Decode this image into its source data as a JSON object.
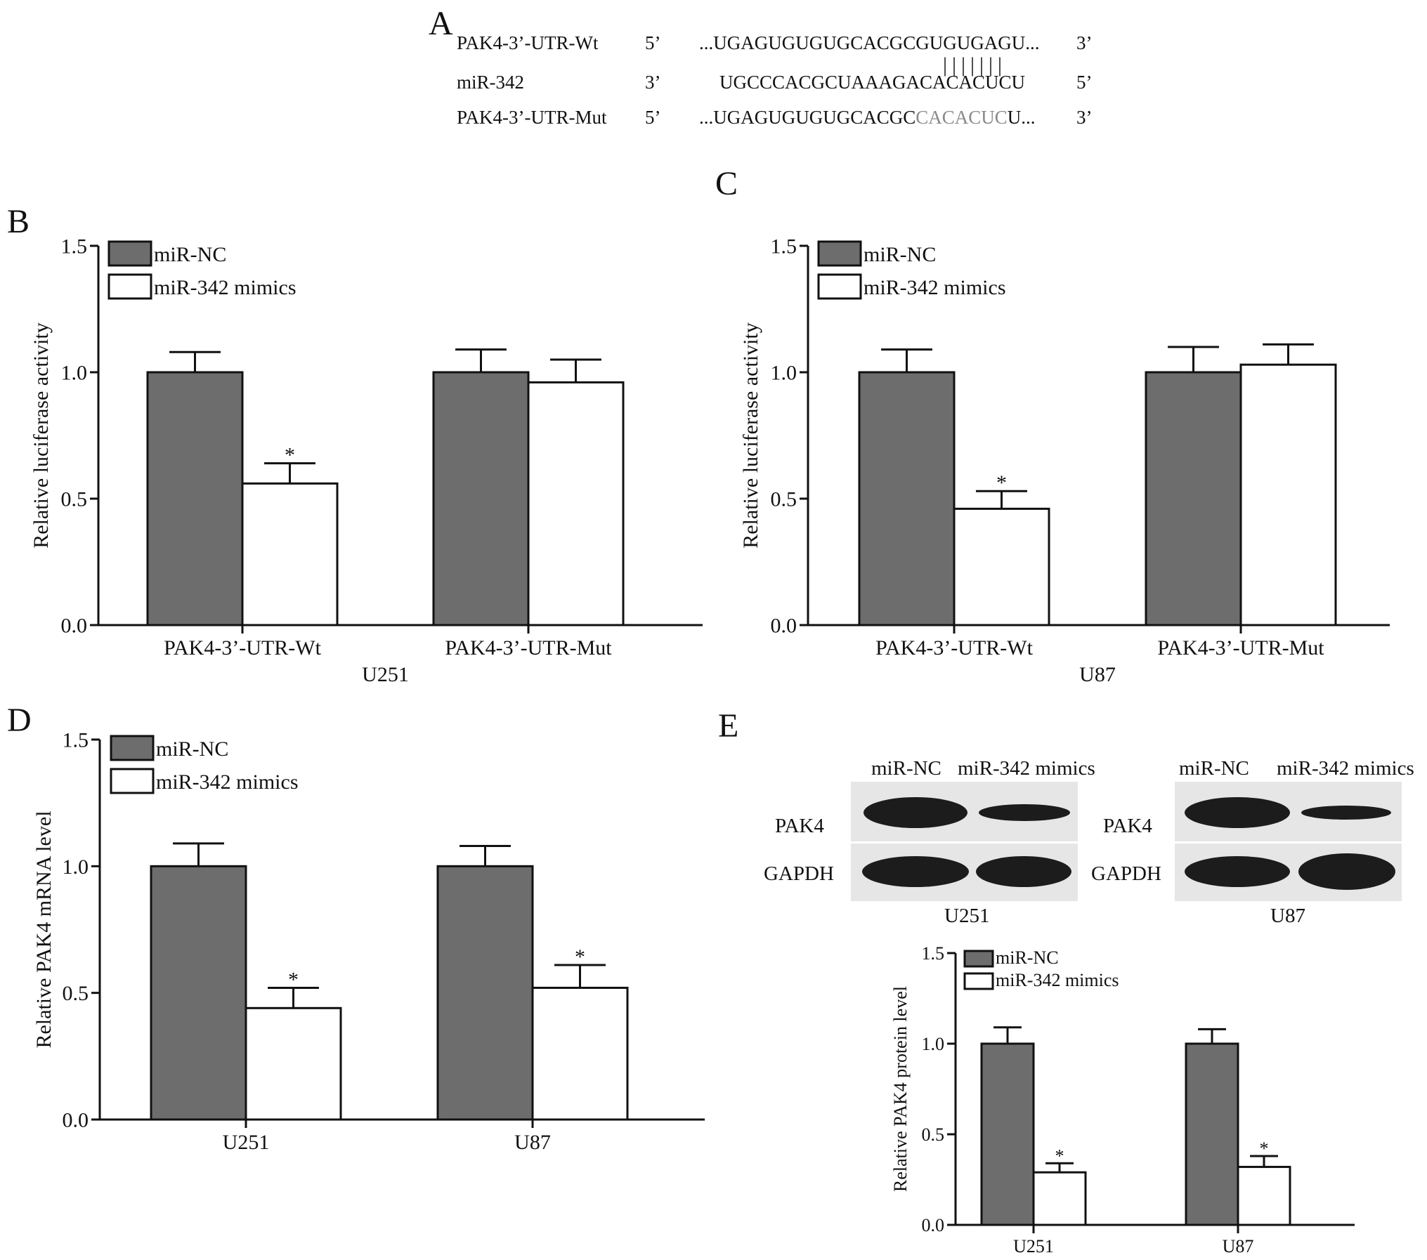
{
  "panels": {
    "a": "A",
    "b": "B",
    "c": "C",
    "d": "D",
    "e": "E"
  },
  "sequence": {
    "rows": [
      {
        "name": "PAK4-3’-UTR-Wt",
        "end5": "5’",
        "text": "...UGAGUGUGUGCACGCGUGUGAGU...",
        "end3": "3’"
      },
      {
        "name": "miR-342",
        "end5": "3’",
        "text": "UGCCCACGCUAAAGACACACUCU",
        "end3": "5’"
      },
      {
        "name": "PAK4-3’-UTR-Mut",
        "end5": "5’",
        "text_a": "...UGAGUGUGUGCACGC",
        "text_b": "CACACUC",
        "text_c": "U...",
        "end3": "3’"
      }
    ],
    "pairs": "|||||||"
  },
  "chart_data": [
    {
      "panel": "B",
      "type": "bar",
      "categories": [
        "PAK4-3’-UTR-Wt",
        "PAK4-3’-UTR-Mut"
      ],
      "xlabel": "U251",
      "ylabel": "Relative luciferase activity",
      "ylim": [
        0,
        1.5
      ],
      "yticks": [
        "0.0",
        "0.5",
        "1.0",
        "1.5"
      ],
      "series": [
        {
          "name": "miR-NC",
          "values": [
            1.0,
            1.0
          ],
          "errors": [
            0.08,
            0.09
          ],
          "color": "#6d6d6d"
        },
        {
          "name": "miR-342 mimics",
          "values": [
            0.56,
            0.96
          ],
          "errors": [
            0.08,
            0.09
          ],
          "color": "#ffffff"
        }
      ],
      "significance": [
        [
          "",
          "*"
        ],
        [
          "",
          ""
        ]
      ],
      "legend": "top-left"
    },
    {
      "panel": "C",
      "type": "bar",
      "categories": [
        "PAK4-3’-UTR-Wt",
        "PAK4-3’-UTR-Mut"
      ],
      "xlabel": "U87",
      "ylabel": "Relative luciferase activity",
      "ylim": [
        0,
        1.5
      ],
      "yticks": [
        "0.0",
        "0.5",
        "1.0",
        "1.5"
      ],
      "series": [
        {
          "name": "miR-NC",
          "values": [
            1.0,
            1.0
          ],
          "errors": [
            0.09,
            0.1
          ],
          "color": "#6d6d6d"
        },
        {
          "name": "miR-342 mimics",
          "values": [
            0.46,
            1.03
          ],
          "errors": [
            0.07,
            0.08
          ],
          "color": "#ffffff"
        }
      ],
      "significance": [
        [
          "",
          "*"
        ],
        [
          "",
          ""
        ]
      ],
      "legend": "top-left"
    },
    {
      "panel": "D",
      "type": "bar",
      "categories": [
        "U251",
        "U87"
      ],
      "xlabel": "",
      "ylabel": "Relative PAK4 mRNA level",
      "ylim": [
        0,
        1.5
      ],
      "yticks": [
        "0.0",
        "0.5",
        "1.0",
        "1.5"
      ],
      "series": [
        {
          "name": "miR-NC",
          "values": [
            1.0,
            1.0
          ],
          "errors": [
            0.09,
            0.08
          ],
          "color": "#6d6d6d"
        },
        {
          "name": "miR-342 mimics",
          "values": [
            0.44,
            0.52
          ],
          "errors": [
            0.08,
            0.09
          ],
          "color": "#ffffff"
        }
      ],
      "significance": [
        [
          "",
          "*"
        ],
        [
          "",
          "*"
        ]
      ],
      "legend": "top-left"
    },
    {
      "panel": "E",
      "type": "bar",
      "categories": [
        "U251",
        "U87"
      ],
      "xlabel": "",
      "ylabel": "Relative PAK4 protein level",
      "ylim": [
        0,
        1.5
      ],
      "yticks": [
        "0.0",
        "0.5",
        "1.0",
        "1.5"
      ],
      "series": [
        {
          "name": "miR-NC",
          "values": [
            1.0,
            1.0
          ],
          "errors": [
            0.09,
            0.08
          ],
          "color": "#6d6d6d"
        },
        {
          "name": "miR-342 mimics",
          "values": [
            0.29,
            0.32
          ],
          "errors": [
            0.05,
            0.06
          ],
          "color": "#ffffff"
        }
      ],
      "significance": [
        [
          "",
          "*"
        ],
        [
          "",
          "*"
        ]
      ],
      "legend": "top-left"
    }
  ],
  "blots": [
    {
      "lanes": [
        "miR-NC",
        "miR-342 mimics"
      ],
      "rows": [
        "PAK4",
        "GAPDH"
      ],
      "cell": "U251"
    },
    {
      "lanes": [
        "miR-NC",
        "miR-342 mimics"
      ],
      "rows": [
        "PAK4",
        "GAPDH"
      ],
      "cell": "U87"
    }
  ]
}
